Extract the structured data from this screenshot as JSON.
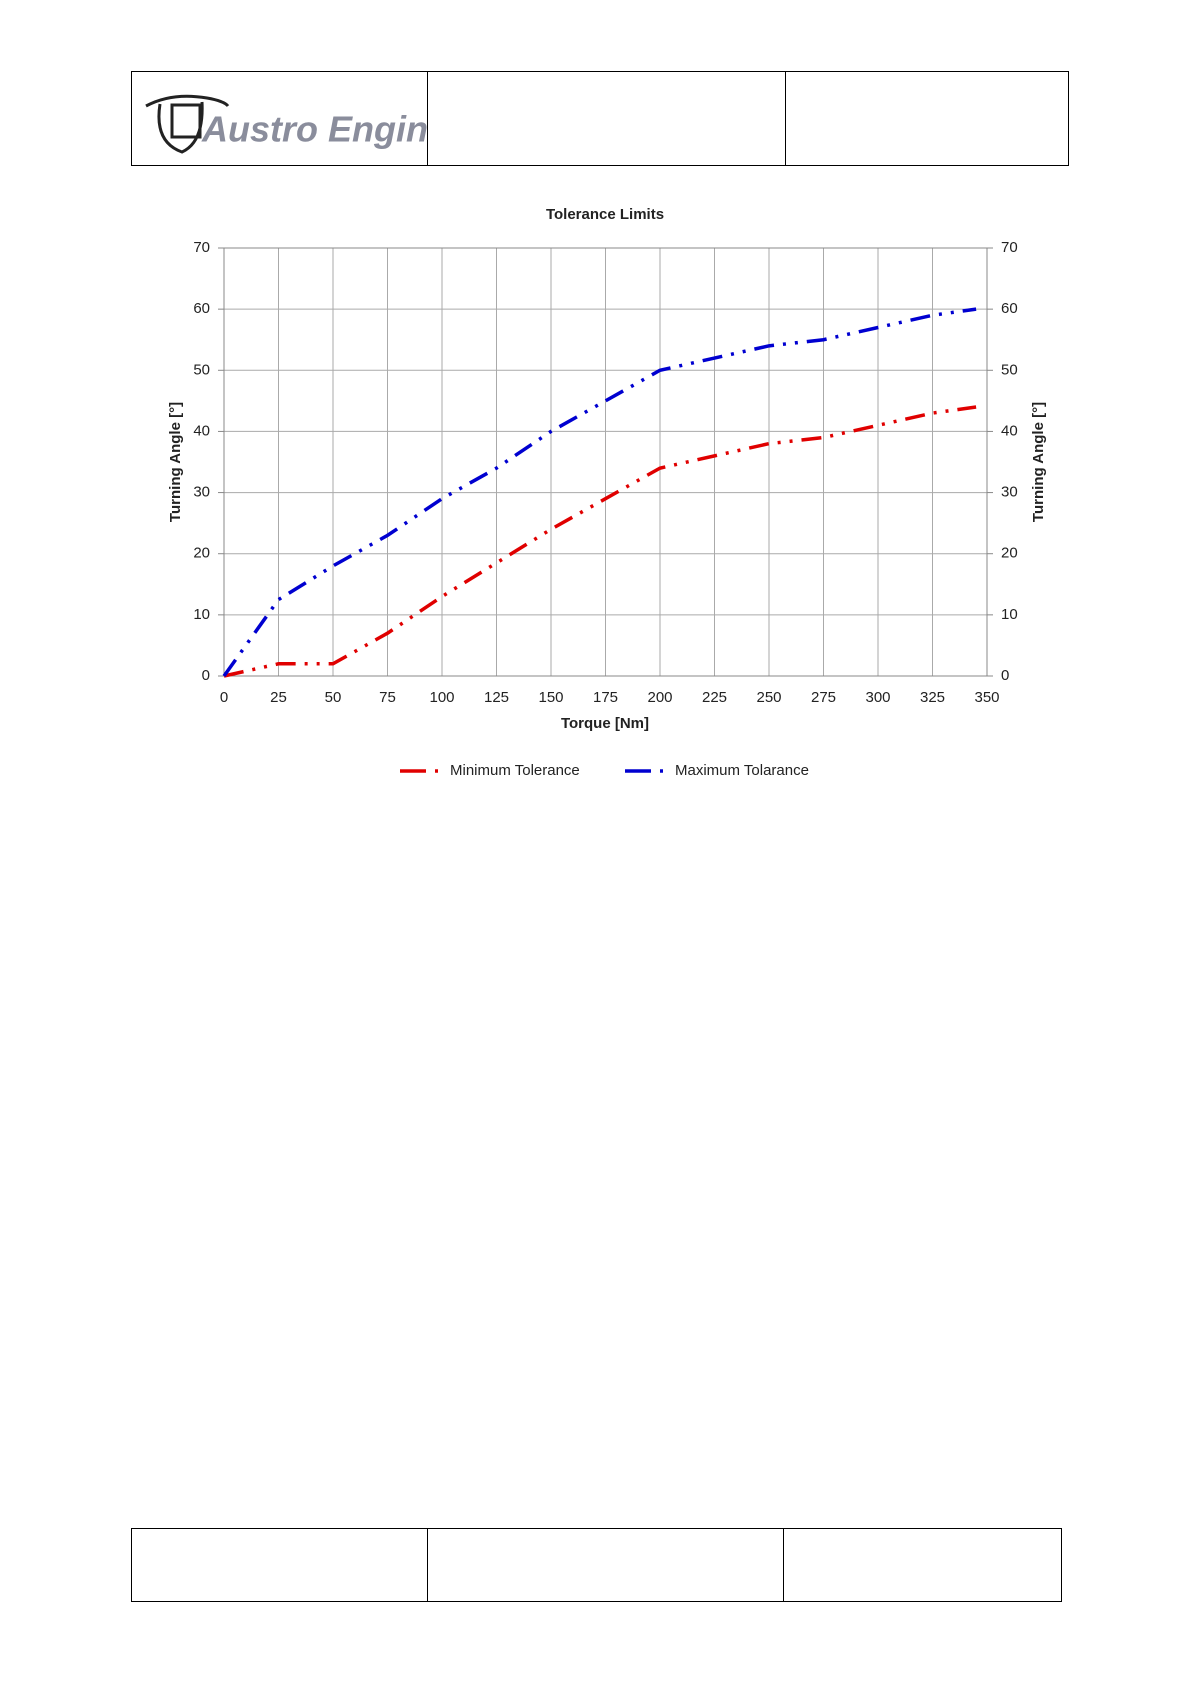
{
  "header": {
    "logo": "Austro Engine"
  },
  "chart_data": {
    "type": "line",
    "title": "Tolerance Limits",
    "x_label": "Torque [Nm]",
    "y_label": "Turning Angle [°]",
    "y2_label": "Turning Angle [°]",
    "x": [
      0,
      25,
      50,
      75,
      100,
      125,
      150,
      175,
      200,
      225,
      250,
      275,
      300,
      325,
      345
    ],
    "series": [
      {
        "name": "Minimum Tolerance",
        "color": "#e00000",
        "values": [
          0,
          2,
          2,
          7,
          13,
          18.5,
          24,
          29,
          34,
          36,
          38,
          39,
          41,
          43,
          44
        ]
      },
      {
        "name": "Maximum Tolarance",
        "color": "#0000d0",
        "values": [
          0,
          12.5,
          18,
          23,
          29,
          34,
          40,
          45,
          50,
          52,
          54,
          55,
          57,
          59,
          60
        ]
      }
    ],
    "xlim": [
      0,
      350
    ],
    "xticks": [
      0,
      25,
      50,
      75,
      100,
      125,
      150,
      175,
      200,
      225,
      250,
      275,
      300,
      325,
      350
    ],
    "ylim": [
      0,
      70
    ],
    "yticks": [
      0,
      10,
      20,
      30,
      40,
      50,
      60,
      70
    ],
    "y2lim": [
      0,
      70
    ],
    "y2ticks": [
      0,
      10,
      20,
      30,
      40,
      50,
      60,
      70
    ],
    "grid": true,
    "legend": "bottom"
  }
}
